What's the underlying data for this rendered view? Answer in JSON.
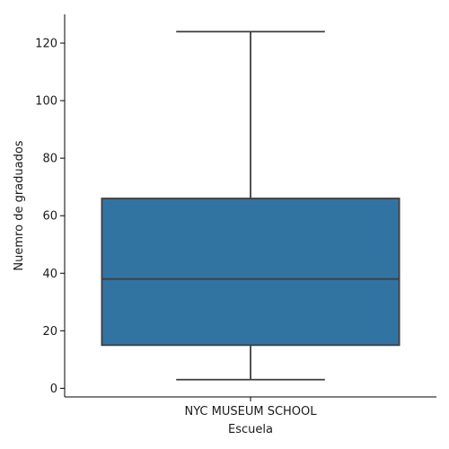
{
  "chart_data": {
    "type": "box",
    "xlabel": "Escuela",
    "ylabel": "Nuemro de graduados",
    "ylim": [
      -3,
      130
    ],
    "yticks": [
      0,
      20,
      40,
      60,
      80,
      100,
      120
    ],
    "categories": [
      "NYC MUSEUM SCHOOL"
    ],
    "boxes": [
      {
        "category": "NYC MUSEUM SCHOOL",
        "whisker_low": 3,
        "q1": 15,
        "median": 38,
        "q3": 66,
        "whisker_high": 124
      }
    ],
    "colors": {
      "box_fill": "#3274a1",
      "line": "#3f3f3f"
    },
    "grid": false,
    "legend": false
  }
}
